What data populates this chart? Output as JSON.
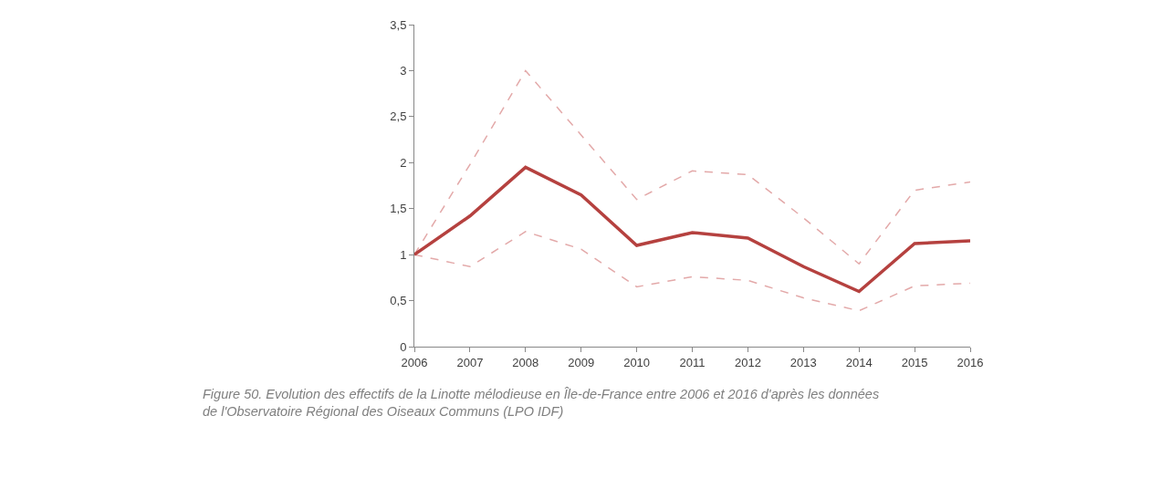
{
  "chart_data": {
    "type": "line",
    "x": [
      2006,
      2007,
      2008,
      2009,
      2010,
      2011,
      2012,
      2013,
      2014,
      2015,
      2016
    ],
    "series": [
      {
        "color": "#e3a9a9",
        "line_style": "dashed",
        "values": [
          1.0,
          1.98,
          3.0,
          2.3,
          1.6,
          1.91,
          1.87,
          1.4,
          0.9,
          1.7,
          1.79
        ]
      },
      {
        "color": "#e3a9a9",
        "line_style": "dashed",
        "values": [
          1.0,
          0.87,
          1.25,
          1.06,
          0.65,
          0.76,
          0.72,
          0.53,
          0.39,
          0.66,
          0.69
        ]
      },
      {
        "color": "#b5413f",
        "line_style": "solid",
        "values": [
          1.0,
          1.42,
          1.95,
          1.65,
          1.1,
          1.24,
          1.18,
          0.87,
          0.6,
          1.12,
          1.15
        ]
      }
    ],
    "xlim": [
      2006,
      2016
    ],
    "xticks": [
      2006,
      2007,
      2008,
      2009,
      2010,
      2011,
      2012,
      2013,
      2014,
      2015,
      2016
    ],
    "ylim": [
      0,
      3.5
    ],
    "yticks": [
      0,
      {
        "value": 0.5,
        "label": "0,5"
      },
      1,
      {
        "value": 1.5,
        "label": "1,5"
      },
      2,
      {
        "value": 2.5,
        "label": "2,5"
      },
      3,
      {
        "value": 3.5,
        "label": "3,5"
      }
    ],
    "marker": "none",
    "annotations": [
      "Figure 50. Evolution des effectifs de la Linotte mélodieuse en Île-de-France entre 2006 et 2016 d'après les données de l'Observatoire Régional des Oiseaux Communs (LPO IDF)"
    ]
  }
}
